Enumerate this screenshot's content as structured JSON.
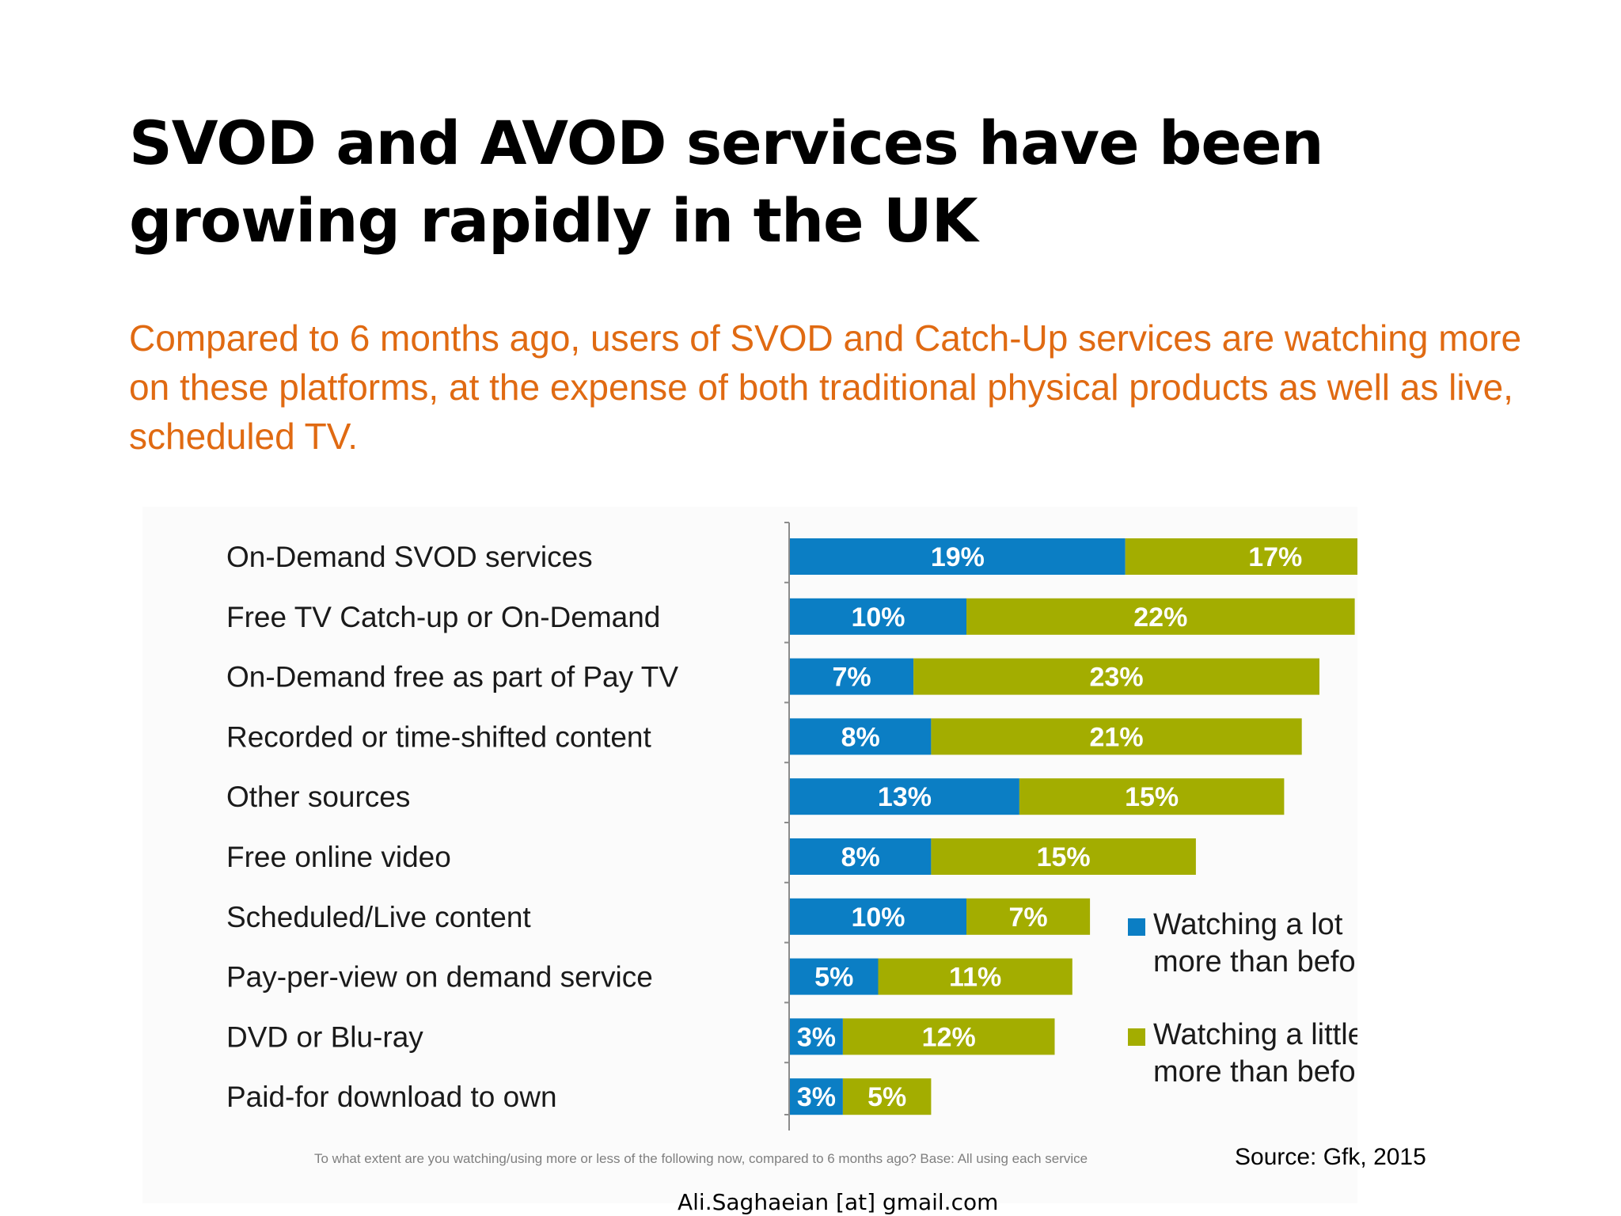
{
  "slide": {
    "title": "SVOD and AVOD services have been growing rapidly in the UK",
    "subtitle": "Compared to 6 months ago, users of SVOD and Catch-Up services are watching more on these platforms, at the expense of both traditional physical products as well as live, scheduled TV.",
    "footnote": "To what extent are you watching/using more or less of the following now, compared to 6 months ago? Base:  All using each service",
    "source": "Source: Gfk, 2015",
    "credit": "Ali.Saghaeian [at] gmail.com"
  },
  "colors": {
    "series_a": "#0b7ec4",
    "series_b": "#a3ad00",
    "title": "#000000",
    "subtitle": "#e06a12"
  },
  "chart_data": {
    "type": "bar",
    "orientation": "horizontal",
    "stacked": true,
    "categories": [
      "On-Demand SVOD services",
      "Free TV Catch-up or On-Demand",
      "On-Demand free as part of Pay TV",
      "Recorded or time-shifted content",
      "Other sources",
      "Free online video",
      "Scheduled/Live content",
      "Pay-per-view on demand service",
      "DVD or Blu-ray",
      "Paid-for download to own"
    ],
    "series": [
      {
        "name": "Watching a lot more than before",
        "color": "#0b7ec4",
        "values": [
          19,
          10,
          7,
          8,
          13,
          8,
          10,
          5,
          3,
          3
        ],
        "labels": [
          "19%",
          "10%",
          "7%",
          "8%",
          "13%",
          "8%",
          "10%",
          "5%",
          "3%",
          "3%"
        ]
      },
      {
        "name": "Watching a little more than before",
        "color": "#a3ad00",
        "values": [
          17,
          22,
          23,
          21,
          15,
          15,
          7,
          11,
          12,
          5
        ],
        "labels": [
          "17%",
          "22%",
          "23%",
          "21%",
          "15%",
          "15%",
          "7%",
          "11%",
          "12%",
          "5%"
        ]
      }
    ],
    "legend": {
      "placement": "bottom-right",
      "items": [
        {
          "line1": "Watching a lot",
          "line2": "more than before"
        },
        {
          "line1": "Watching a little",
          "line2": "more than before"
        }
      ]
    },
    "xlim": [
      0,
      36
    ],
    "grid": false
  }
}
